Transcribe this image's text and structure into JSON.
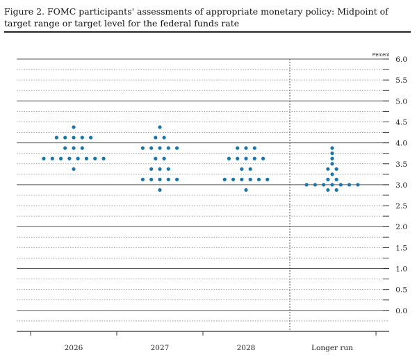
{
  "figure": {
    "title": "Figure 2. FOMC participants' assessments of appropriate monetary policy: Midpoint of target range or target level for the federal funds rate"
  },
  "colors": {
    "dot": "#1a75a8",
    "grid_major": "#555555",
    "grid_minor": "#888888"
  },
  "chart_data": {
    "type": "scatter",
    "title": "Figure 2. FOMC participants' assessments of appropriate monetary policy: Midpoint of target range or target level for the federal funds rate",
    "unit_label": "Percent",
    "ylim": [
      -0.5,
      6.0
    ],
    "yticks": [
      0.0,
      0.5,
      1.0,
      1.5,
      2.0,
      2.5,
      3.0,
      3.5,
      4.0,
      4.5,
      5.0,
      5.5,
      6.0
    ],
    "ytick_labels": [
      "0.0",
      "0.5",
      "1.0",
      "1.5",
      "2.0",
      "2.5",
      "3.0",
      "3.5",
      "4.0",
      "4.5",
      "5.0",
      "5.5",
      "6.0"
    ],
    "categories": [
      "2026",
      "2027",
      "2028",
      "Longer run"
    ],
    "series": [
      {
        "category": "2026",
        "points": [
          {
            "y": 4.375,
            "count": 1
          },
          {
            "y": 4.125,
            "count": 5
          },
          {
            "y": 3.875,
            "count": 3
          },
          {
            "y": 3.625,
            "count": 8
          },
          {
            "y": 3.375,
            "count": 1
          }
        ]
      },
      {
        "category": "2027",
        "points": [
          {
            "y": 4.375,
            "count": 1
          },
          {
            "y": 4.125,
            "count": 2
          },
          {
            "y": 3.875,
            "count": 5
          },
          {
            "y": 3.625,
            "count": 2
          },
          {
            "y": 3.375,
            "count": 3
          },
          {
            "y": 3.125,
            "count": 5
          },
          {
            "y": 2.875,
            "count": 1
          }
        ]
      },
      {
        "category": "2028",
        "points": [
          {
            "y": 3.875,
            "count": 3
          },
          {
            "y": 3.625,
            "count": 5
          },
          {
            "y": 3.375,
            "count": 2
          },
          {
            "y": 3.125,
            "count": 6
          },
          {
            "y": 2.875,
            "count": 1
          }
        ]
      },
      {
        "category": "Longer run",
        "points": [
          {
            "y": 3.875,
            "count": 1
          },
          {
            "y": 3.75,
            "count": 1
          },
          {
            "y": 3.625,
            "count": 1
          },
          {
            "y": 3.5,
            "count": 1
          },
          {
            "y": 3.375,
            "count": 2
          },
          {
            "y": 3.25,
            "count": 1
          },
          {
            "y": 3.125,
            "count": 2
          },
          {
            "y": 3.0,
            "count": 7
          },
          {
            "y": 2.875,
            "count": 2
          }
        ]
      }
    ],
    "grid": true
  }
}
